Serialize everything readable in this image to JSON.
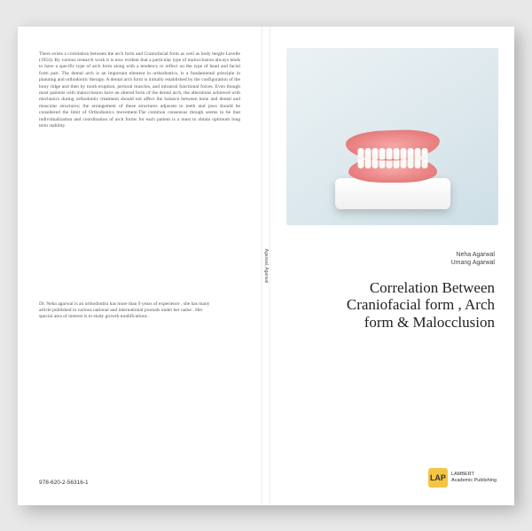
{
  "back": {
    "abstract": "There exists a correlation between the arch form and Craniofacial form as well as body height Lavelle (1954). By various research work it is now evident that a particular type of malocclusion always tends to have a specific type of arch form along with a tendency to reflect on the type of head and facial form part. The dental arch is an important element in orthodontics, is a fundamental principle in planning and orthodontic therapy. A dental arch form is initially established by the configuration of the bony ridge and then by tooth eruption, perioral muscles, and intraoral functional forces. Even though most patients with malocclusion have an altered form of the dental arch, the alterations achieved with mechanics during orthodontic treatment should not affect the balance between bone and dental and muscular structures; the arrangement of these structures adjacent to teeth and jaws should be considered the limit of Orthodontics movement.The common consensus though seems to be that individualization and coordination of arch forms for each patient is a must to obtain optimum long term stability.",
    "bio": "Dr. Neha agarwal is an orthodontist has more than 9 years of experience , she has many article published in various national and international journals under her name . Her special area of interest is to study growth modifications .",
    "isbn": "978-620-2-56316-1"
  },
  "spine": {
    "label": "Agarwal, Agarwal"
  },
  "front": {
    "author1": "Neha Agarwal",
    "author2": "Umang Agarwal",
    "title_line1": "Correlation Between",
    "title_line2": "Craniofacial form , Arch",
    "title_line3": "form & Malocclusion",
    "publisher_code": "LAP",
    "publisher_line1": "LAMBERT",
    "publisher_line2": "Academic Publishing"
  },
  "colors": {
    "page_bg": "#e8e8e8",
    "cover_bg": "#ffffff",
    "hero_bg1": "#dfe9ed",
    "hero_bg2": "#cfe0e6",
    "gum": "#e06b6b",
    "logo": "#f5c542",
    "text_body": "#555555",
    "text_title": "#222222"
  }
}
